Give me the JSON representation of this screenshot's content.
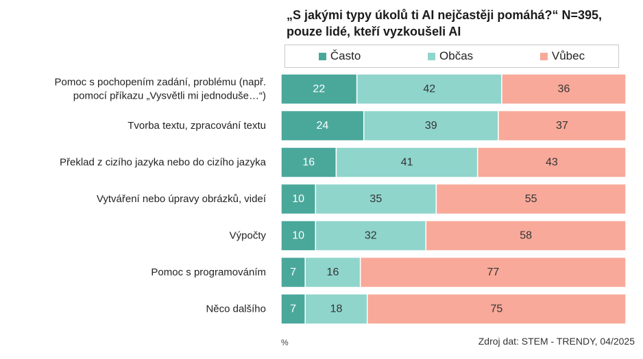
{
  "title": {
    "line1": "„S jakými typy úkolů ti AI nejčastěji pomáhá?“ N=395,",
    "line2": "pouze  lidé, kteří vyzkoušeli AI"
  },
  "colors": {
    "casto": "#4aa89b",
    "obcas": "#8fd5cc",
    "vubec": "#f8a999"
  },
  "chart_data": {
    "type": "bar",
    "orientation": "horizontal",
    "stacked": true,
    "unit": "%",
    "categories": [
      "Pomoc s pochopením zadání, problému (např. pomocí příkazu „Vysvětli mi jednoduše…“)",
      "Tvorba textu, zpracování textu",
      "Překlad z cizího jazyka nebo do cizího jazyka",
      "Vytváření nebo úpravy obrázků, videí",
      "Výpočty",
      "Pomoc s programováním",
      "Něco dalšího"
    ],
    "category_lines": [
      [
        "Pomoc s pochopením zadání, problému (např.",
        "pomocí příkazu „Vysvětli mi jednoduše…“)"
      ],
      [
        "Tvorba textu, zpracování textu"
      ],
      [
        "Překlad z cizího jazyka nebo do cizího jazyka"
      ],
      [
        "Vytváření nebo úpravy obrázků, videí"
      ],
      [
        "Výpočty"
      ],
      [
        "Pomoc s programováním"
      ],
      [
        "Něco dalšího"
      ]
    ],
    "series": [
      {
        "name": "Často",
        "color_key": "casto",
        "values": [
          22,
          24,
          16,
          10,
          10,
          7,
          7
        ]
      },
      {
        "name": "Občas",
        "color_key": "obcas",
        "values": [
          42,
          39,
          41,
          35,
          32,
          16,
          18
        ]
      },
      {
        "name": "Vůbec",
        "color_key": "vubec",
        "values": [
          36,
          37,
          43,
          55,
          58,
          77,
          75
        ]
      }
    ],
    "xlim": [
      0,
      100
    ],
    "legend_position": "top",
    "grid": false
  },
  "footer": {
    "percent_label": "%",
    "source": "Zdroj dat: STEM - TRENDY, 04/2025"
  }
}
